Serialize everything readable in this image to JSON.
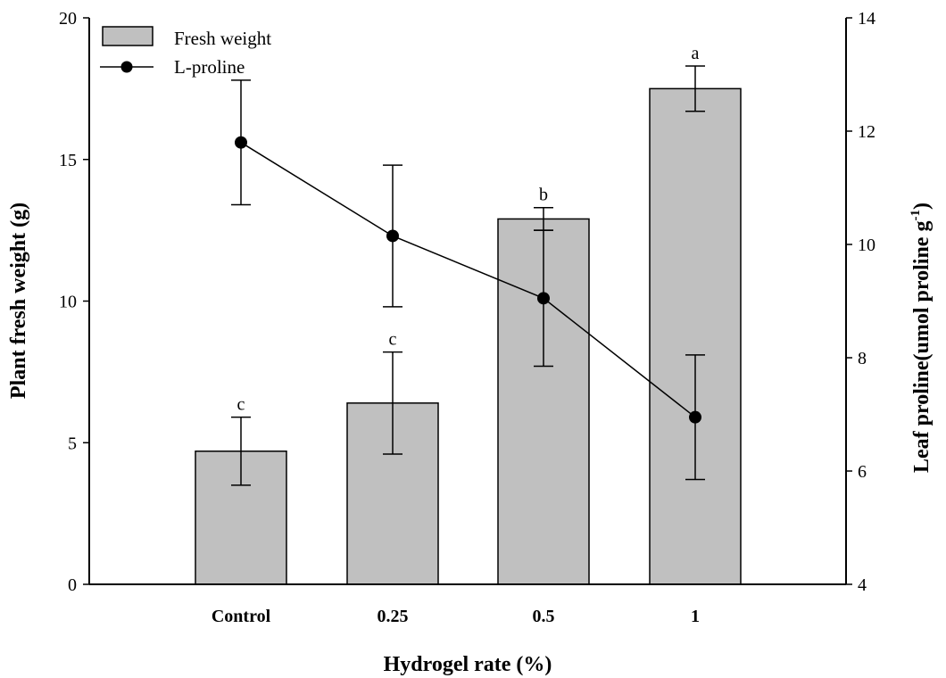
{
  "chart_data": {
    "type": "bar",
    "categories": [
      "Control",
      "0.25",
      "0.5",
      "1"
    ],
    "xlabel": "Hydrogel rate (%)",
    "ylabel": "Plant fresh weight (g)",
    "ylabel_right": "Leaf  proline(umol proline g",
    "ylabel_right_sup": "-1",
    "ylabel_right_close": ")",
    "ylim": [
      0,
      20
    ],
    "ylim_right": [
      4,
      14
    ],
    "yticks": [
      "0",
      "5",
      "10",
      "15",
      "20"
    ],
    "yticks_right": [
      "4",
      "6",
      "8",
      "10",
      "12",
      "14"
    ],
    "series": [
      {
        "name": "Fresh weight",
        "type": "bar",
        "axis": "left",
        "values": [
          4.7,
          6.4,
          12.9,
          17.5
        ],
        "errors": [
          1.2,
          1.8,
          0.4,
          0.8
        ],
        "labels": [
          "c",
          "c",
          "b",
          "a"
        ],
        "color": "#c0c0c0"
      },
      {
        "name": "L-proline",
        "type": "line",
        "axis": "right",
        "values": [
          11.8,
          10.15,
          9.05,
          6.95
        ],
        "errors": [
          1.1,
          1.25,
          1.2,
          1.1
        ],
        "color": "#000000"
      }
    ],
    "legend_position": "top-left",
    "grid": false
  }
}
